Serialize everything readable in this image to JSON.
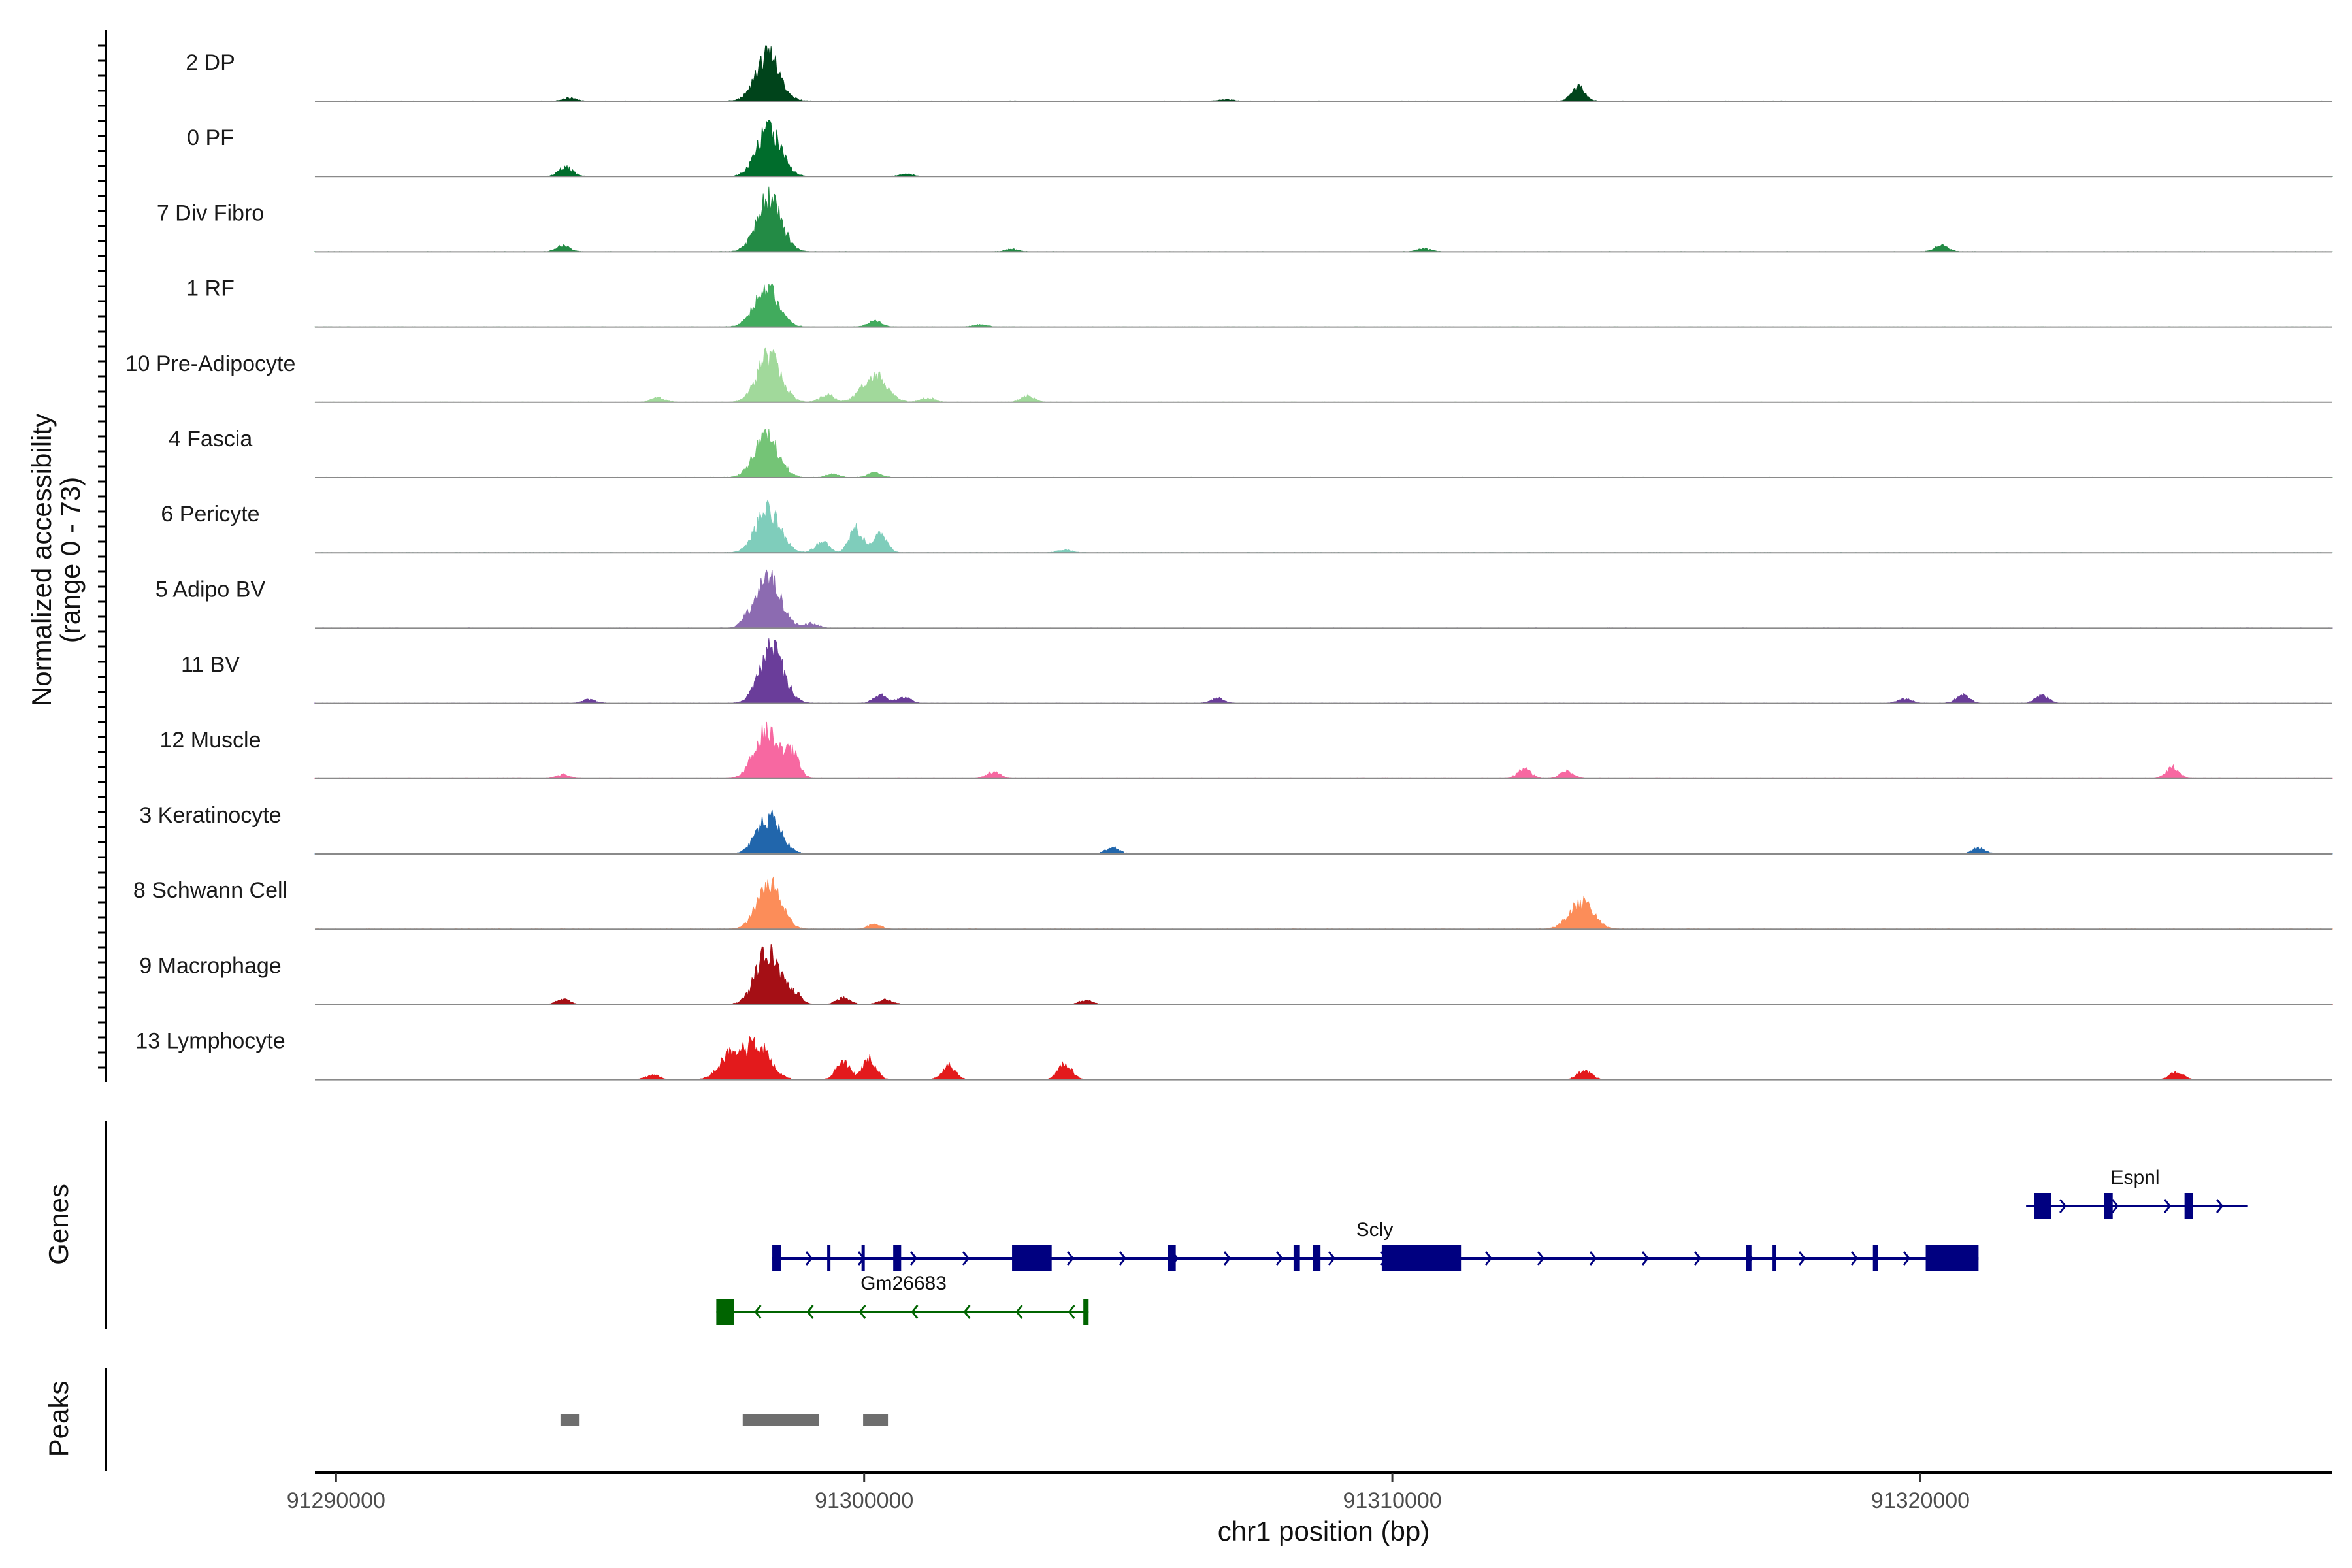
{
  "chart_data": {
    "type": "coverage",
    "title": "",
    "xlabel": "chr1 position (bp)",
    "ylabel_coverage": "Normalized accessibility\n(range 0 - 73)",
    "ylabel_coverage_lines": [
      "Normalized accessibility",
      "(range 0 - 73)"
    ],
    "ylabel_genes": "Genes",
    "ylabel_peaks": "Peaks",
    "xlim": [
      91289600,
      91327800
    ],
    "ylim": [
      0,
      73
    ],
    "xticks": [
      91290000,
      91300000,
      91310000,
      91320000
    ],
    "xtick_labels": [
      "91290000",
      "91300000",
      "91310000",
      "91320000"
    ],
    "tracks": [
      {
        "name": "2 DP",
        "color": "#00441b",
        "peaks": [
          [
            91298180,
            58
          ],
          [
            91294420,
            4
          ],
          [
            91313520,
            18
          ],
          [
            91306850,
            2
          ]
        ]
      },
      {
        "name": "0 PF",
        "color": "#006d2c",
        "peaks": [
          [
            91298200,
            60
          ],
          [
            91294350,
            12
          ],
          [
            91300800,
            3
          ]
        ]
      },
      {
        "name": "7 Div Fibro",
        "color": "#238b45",
        "peaks": [
          [
            91298200,
            68
          ],
          [
            91294300,
            8
          ],
          [
            91320400,
            9
          ],
          [
            91302800,
            3
          ],
          [
            91310600,
            4
          ]
        ]
      },
      {
        "name": "1 RF",
        "color": "#41ab5d",
        "peaks": [
          [
            91298150,
            50
          ],
          [
            91300200,
            8
          ],
          [
            91302200,
            3
          ]
        ]
      },
      {
        "name": "10 Pre-Adipocyte",
        "color": "#a1d99b",
        "peaks": [
          [
            91298200,
            58
          ],
          [
            91300200,
            34
          ],
          [
            91299300,
            10
          ],
          [
            91296100,
            6
          ],
          [
            91303100,
            8
          ],
          [
            91301200,
            6
          ]
        ]
      },
      {
        "name": "4 Fascia",
        "color": "#74c476",
        "peaks": [
          [
            91298150,
            52
          ],
          [
            91300200,
            6
          ],
          [
            91299400,
            4
          ]
        ]
      },
      {
        "name": "6 Pericyte",
        "color": "#7fcdbb",
        "peaks": [
          [
            91298180,
            56
          ],
          [
            91299850,
            30
          ],
          [
            91300300,
            22
          ],
          [
            91299200,
            14
          ],
          [
            91303800,
            4
          ]
        ]
      },
      {
        "name": "5 Adipo BV",
        "color": "#8c6bb1",
        "peaks": [
          [
            91298200,
            64
          ],
          [
            91297800,
            8
          ],
          [
            91299000,
            6
          ]
        ]
      },
      {
        "name": "11 BV",
        "color": "#6a3d9a",
        "peaks": [
          [
            91298250,
            68
          ],
          [
            91300300,
            10
          ],
          [
            91300750,
            8
          ],
          [
            91306700,
            6
          ],
          [
            91320800,
            10
          ],
          [
            91322300,
            10
          ],
          [
            91319700,
            6
          ],
          [
            91294800,
            5
          ]
        ]
      },
      {
        "name": "12 Muscle",
        "color": "#f768a1",
        "peaks": [
          [
            91298150,
            62
          ],
          [
            91298650,
            30
          ],
          [
            91312500,
            12
          ],
          [
            91313300,
            10
          ],
          [
            91324770,
            14
          ],
          [
            91302450,
            8
          ],
          [
            91294300,
            5
          ]
        ]
      },
      {
        "name": "3 Keratinocyte",
        "color": "#2166ac",
        "peaks": [
          [
            91298200,
            46
          ],
          [
            91304700,
            8
          ],
          [
            91321100,
            7
          ]
        ]
      },
      {
        "name": "8 Schwann Cell",
        "color": "#fc8d59",
        "peaks": [
          [
            91298200,
            56
          ],
          [
            91313580,
            34
          ],
          [
            91300200,
            6
          ]
        ]
      },
      {
        "name": "9 Macrophage",
        "color": "#a50f15",
        "peaks": [
          [
            91298180,
            68
          ],
          [
            91298700,
            12
          ],
          [
            91294300,
            6
          ],
          [
            91299600,
            8
          ],
          [
            91300400,
            6
          ],
          [
            91304200,
            5
          ]
        ]
      },
      {
        "name": "13 Lymphocyte",
        "color": "#e31a1c",
        "peaks": [
          [
            91298000,
            44
          ],
          [
            91297500,
            32
          ],
          [
            91299600,
            22
          ],
          [
            91300100,
            26
          ],
          [
            91301600,
            18
          ],
          [
            91303800,
            20
          ],
          [
            91313640,
            12
          ],
          [
            91324850,
            10
          ],
          [
            91296000,
            6
          ]
        ]
      }
    ],
    "genes": [
      {
        "name": "Scly",
        "strand": "+",
        "color": "#000080",
        "start": 91298260,
        "end": 91321100,
        "exons": [
          [
            91298260,
            91298420
          ],
          [
            91299300,
            91299360
          ],
          [
            91299950,
            91300010
          ],
          [
            91300550,
            91300700
          ],
          [
            91302800,
            91303550
          ],
          [
            91305750,
            91305900
          ],
          [
            91308130,
            91308250
          ],
          [
            91308500,
            91308640
          ],
          [
            91309800,
            91311300
          ],
          [
            91316700,
            91316800
          ],
          [
            91317200,
            91317250
          ],
          [
            91319100,
            91319200
          ],
          [
            91320100,
            91321100
          ]
        ]
      },
      {
        "name": "Gm26683",
        "strand": "-",
        "color": "#006400",
        "start": 91297200,
        "end": 91304250,
        "exons": [
          [
            91297200,
            91297540
          ],
          [
            91304150,
            91304250
          ]
        ]
      },
      {
        "name": "Espnl",
        "strand": "+",
        "color": "#000080",
        "start": 91322000,
        "end": 91326200,
        "exons": [
          [
            91322150,
            91322480
          ],
          [
            91323480,
            91323640
          ],
          [
            91325000,
            91325160
          ]
        ]
      }
    ],
    "peak_regions": [
      [
        91294250,
        91294600
      ],
      [
        91297700,
        91299150
      ],
      [
        91299980,
        91300450
      ]
    ],
    "peak_color": "#6e6e6e",
    "baseline_color": "#8a8a8a"
  }
}
